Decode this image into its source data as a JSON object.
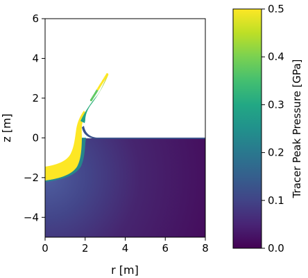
{
  "chart_data": {
    "type": "heatmap",
    "xlabel": "r [m]",
    "ylabel": "z [m]",
    "xlim": [
      0,
      8
    ],
    "ylim": [
      -5,
      6
    ],
    "x_ticks": [
      "0",
      "2",
      "4",
      "6",
      "8"
    ],
    "y_ticks": [
      "−4",
      "−2",
      "0",
      "2",
      "4",
      "6"
    ],
    "colorbar": {
      "label": "Tracer Peak Pressure [GPa]",
      "range": [
        0.0,
        0.5
      ],
      "ticks": [
        "0.0",
        "0.1",
        "0.2",
        "0.3",
        "0.4",
        "0.5"
      ],
      "colormap": "viridis"
    },
    "field": {
      "surface_z": 0,
      "crater_profile": [
        [
          0,
          -2.25
        ],
        [
          0.8,
          -1.95
        ],
        [
          1.4,
          -1.3
        ],
        [
          1.75,
          -0.5
        ],
        [
          1.85,
          0.5
        ],
        [
          2.0,
          1.3
        ],
        [
          2.4,
          2.2
        ],
        [
          3.1,
          3.2
        ]
      ],
      "crater_base_pressure": 0.5,
      "far_field_pressure": 0.02
    },
    "grid": false
  }
}
